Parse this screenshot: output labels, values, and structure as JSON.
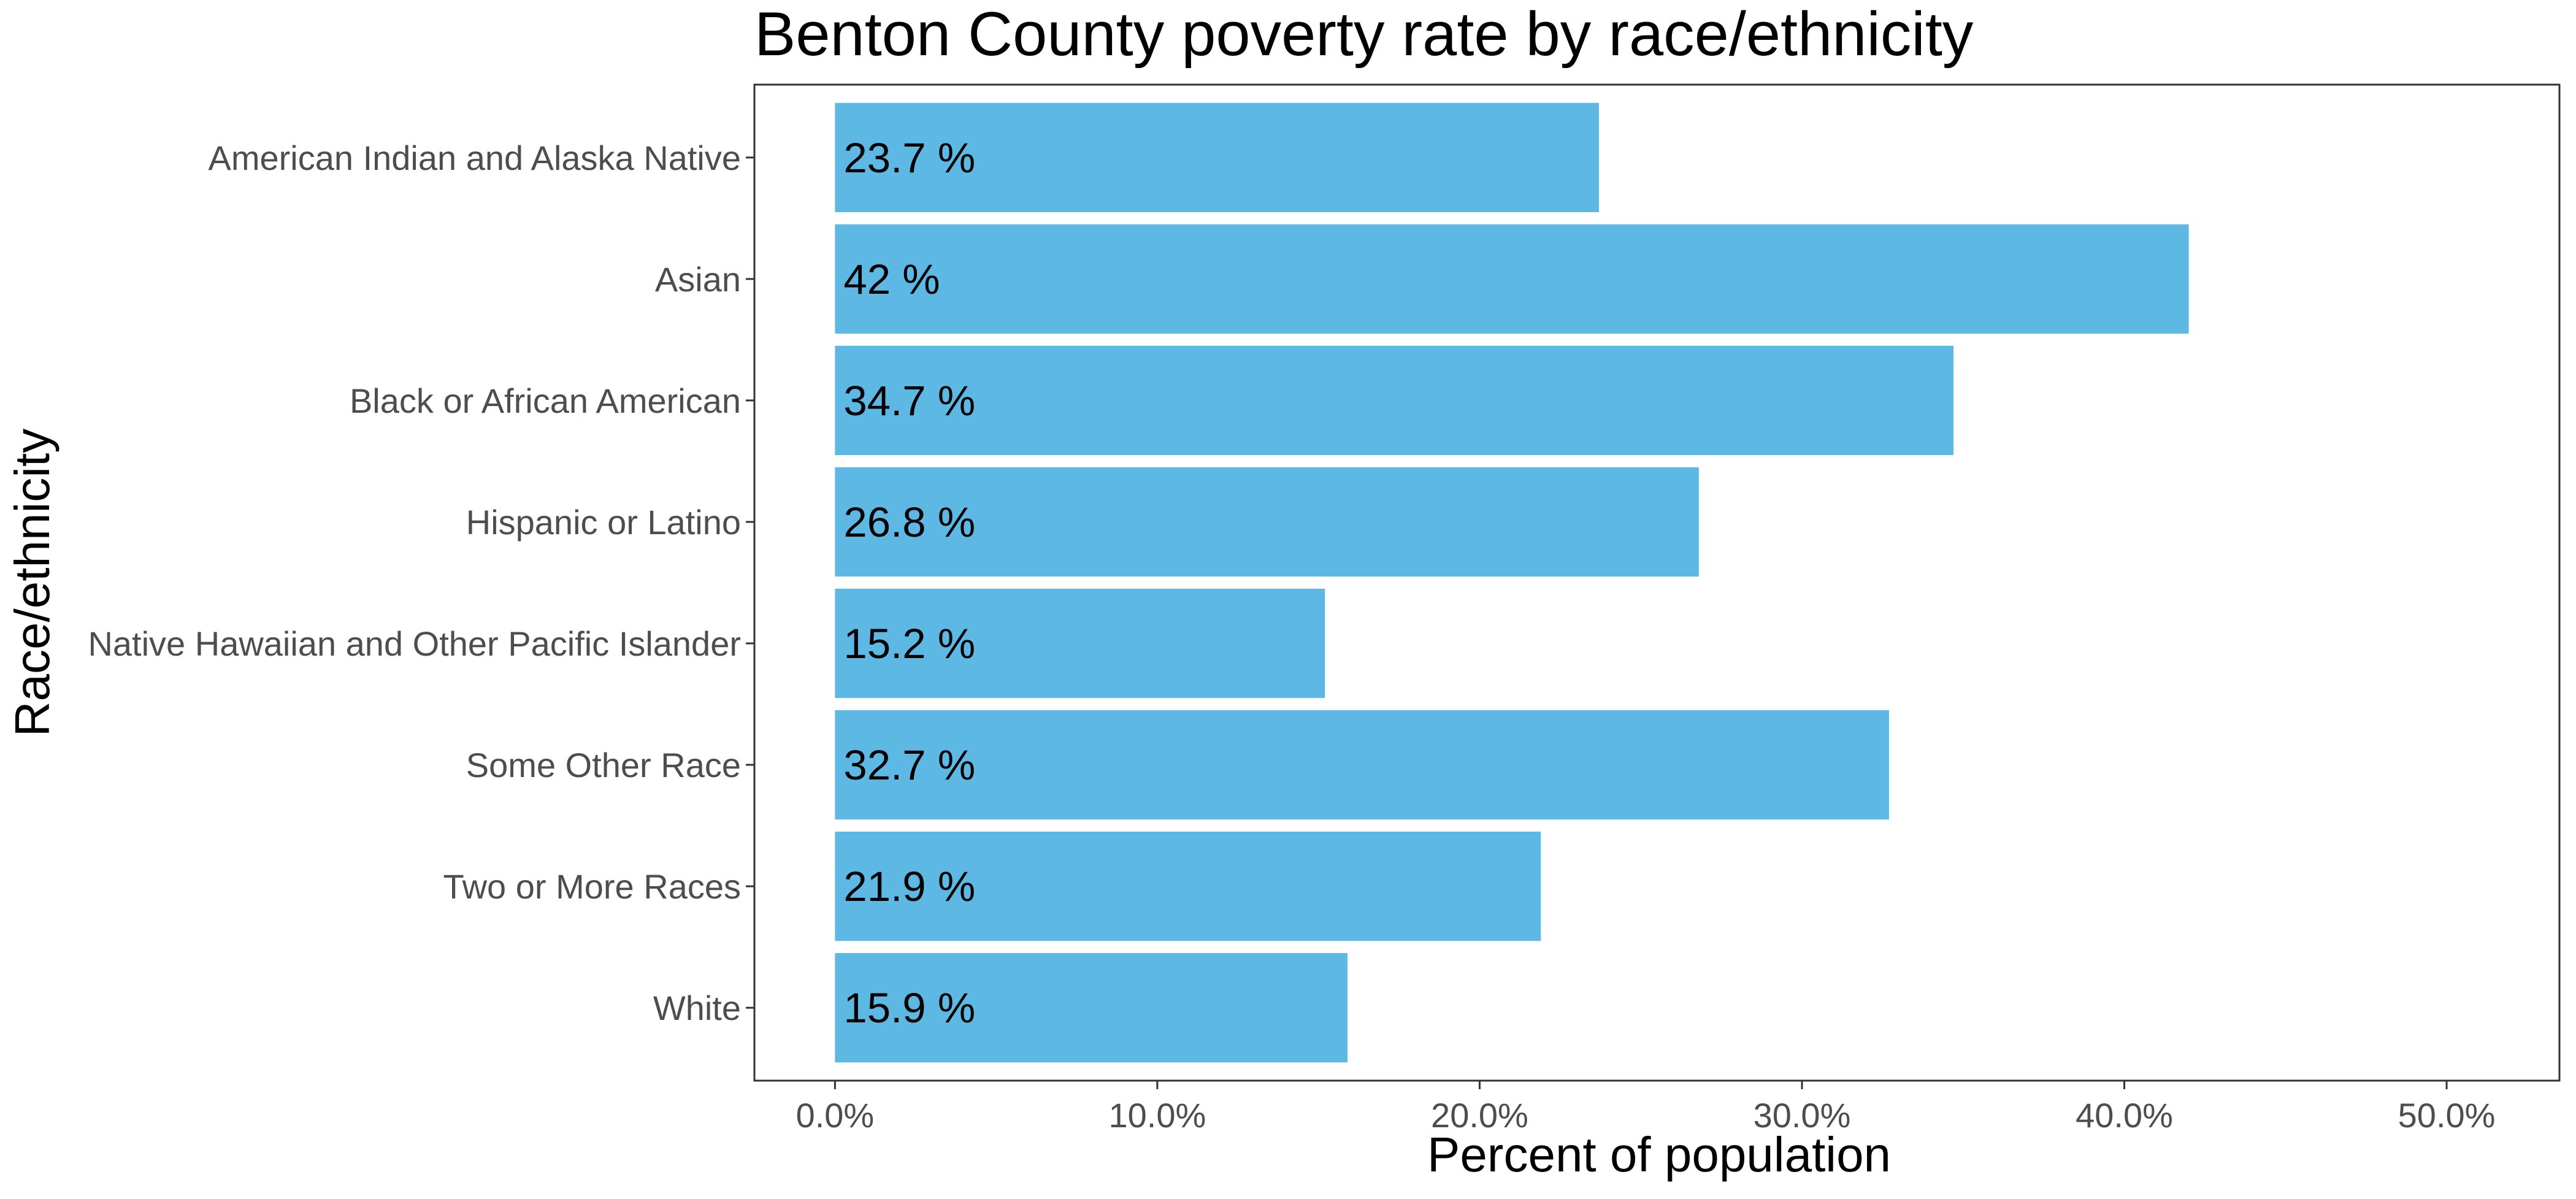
{
  "chart_data": {
    "type": "bar",
    "orientation": "horizontal",
    "title": "Benton County poverty rate by race/ethnicity",
    "xlabel": "Percent of population",
    "ylabel": "Race/ethnicity",
    "categories": [
      "American Indian and Alaska Native",
      "Asian",
      "Black or African American",
      "Hispanic or Latino",
      "Native Hawaiian and Other Pacific Islander",
      "Some Other Race",
      "Two or More Races",
      "White"
    ],
    "values": [
      23.7,
      42,
      34.7,
      26.8,
      15.2,
      32.7,
      21.9,
      15.9
    ],
    "data_labels": [
      "23.7 %",
      "42 %",
      "34.7 %",
      "26.8 %",
      "15.2 %",
      "32.7 %",
      "21.9 %",
      "15.9 %"
    ],
    "x_ticks": [
      0,
      10,
      20,
      30,
      40,
      50
    ],
    "x_tick_labels": [
      "0.0%",
      "10.0%",
      "20.0%",
      "30.0%",
      "40.0%",
      "50.0%"
    ],
    "xlim": [
      -2.5,
      53.5
    ],
    "grid": false,
    "legend": "none",
    "bar_color": "#5db8e3"
  }
}
